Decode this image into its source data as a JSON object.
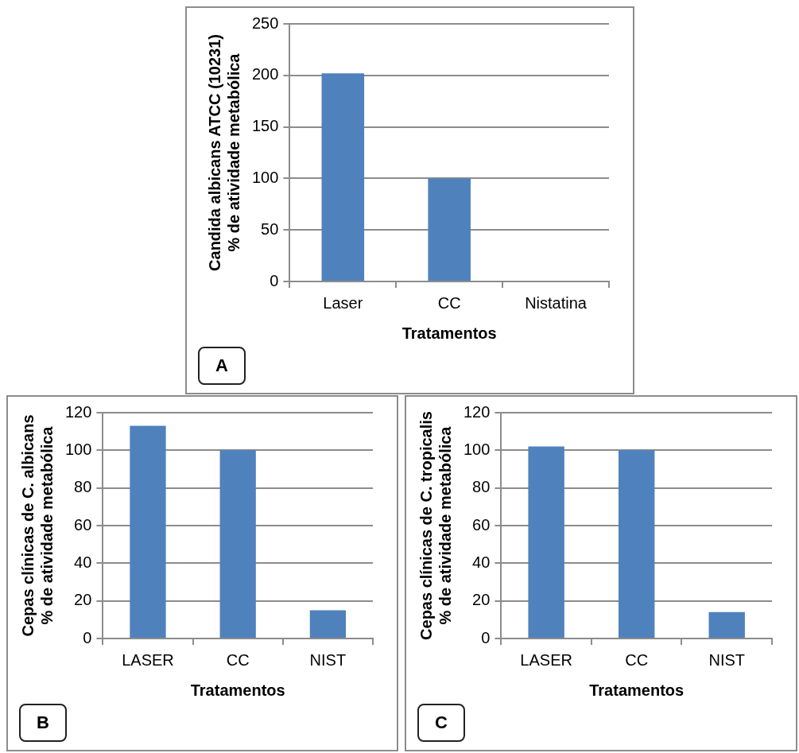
{
  "chart_data": [
    {
      "type": "bar",
      "xlabel": "Tratamentos",
      "ylabel": "Candida albicans ATCC (10231)\n% de atividade metabólica",
      "categories": [
        "Laser",
        "CC",
        "Nistatina"
      ],
      "values": [
        202,
        100,
        0
      ],
      "color": "#4f81bd",
      "ylim": [
        0,
        250
      ],
      "yticks": [
        0,
        50,
        100,
        150,
        200,
        250
      ],
      "grid": "y",
      "annotations": [
        "A"
      ]
    },
    {
      "type": "bar",
      "xlabel": "Tratamentos",
      "ylabel": "Cepas clínicas de C. albicans\n% de atividade metabólica",
      "categories": [
        "LASER",
        "CC",
        "NIST"
      ],
      "values": [
        113,
        100,
        15
      ],
      "color": "#4f81bd",
      "ylim": [
        0,
        120
      ],
      "yticks": [
        0,
        20,
        40,
        60,
        80,
        100,
        120
      ],
      "grid": "y",
      "annotations": [
        "B"
      ]
    },
    {
      "type": "bar",
      "xlabel": "Tratamentos",
      "ylabel": "Cepas clínicas de C. tropicalis\n% de atividade metabólica",
      "categories": [
        "LASER",
        "CC",
        "NIST"
      ],
      "values": [
        102,
        100,
        14
      ],
      "color": "#4f81bd",
      "ylim": [
        0,
        120
      ],
      "yticks": [
        0,
        20,
        40,
        60,
        80,
        100,
        120
      ],
      "grid": "y",
      "annotations": [
        "C"
      ]
    }
  ]
}
